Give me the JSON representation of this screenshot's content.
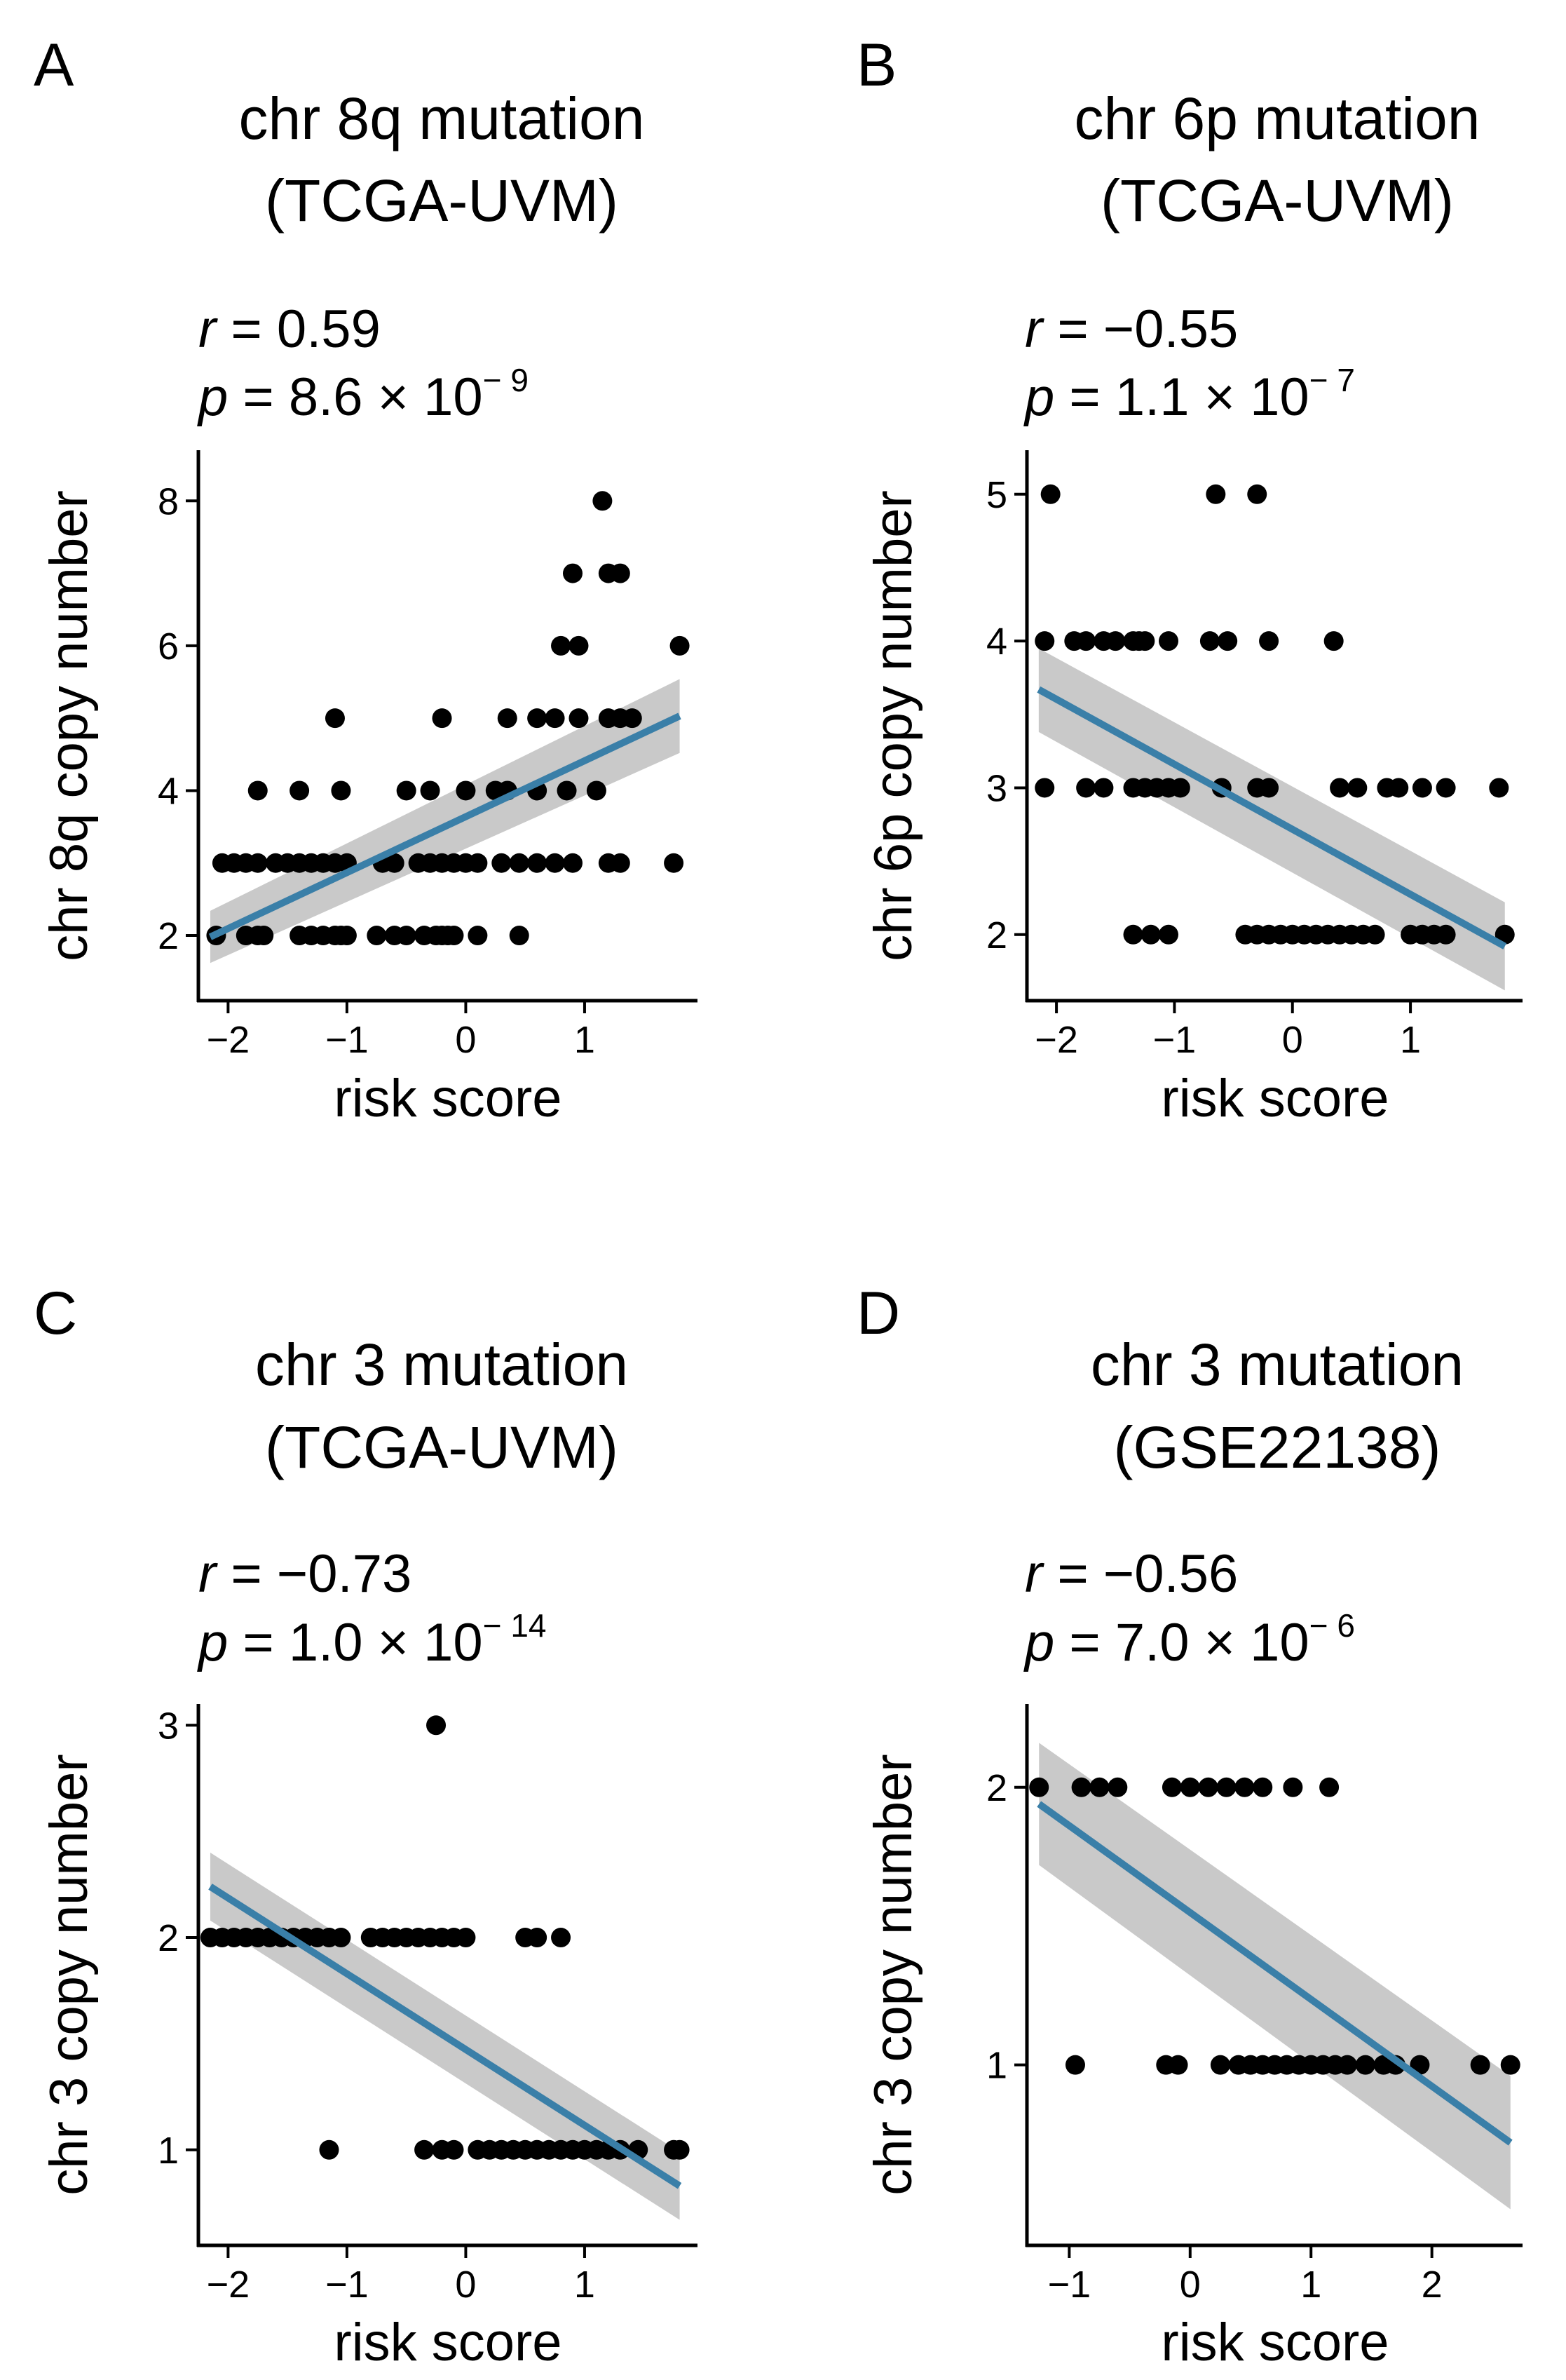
{
  "colors": {
    "point": "#000000",
    "line": "#3a7fa8",
    "band": "#bfbfbf",
    "axis": "#000000",
    "tick_text": "#4d4d4d"
  },
  "chart_data": [
    {
      "panel": "A",
      "type": "scatter",
      "title_line1": "chr 8q mutation",
      "title_line2": "(TCGA-UVM)",
      "r_label": "r",
      "r_text": " = 0.59",
      "p_label": "p",
      "p_mantissa": " = 8.6 × 10",
      "p_exponent": "− 9",
      "xlabel": "risk score",
      "ylabel": "chr 8q copy number",
      "xlim": [
        -2.25,
        1.95
      ],
      "ylim": [
        1.1,
        8.7
      ],
      "xticks": [
        -2,
        -1,
        0,
        1
      ],
      "xtick_labels": [
        "−2",
        "−1",
        "0",
        "1"
      ],
      "yticks": [
        2,
        4,
        6,
        8
      ],
      "ytick_labels": [
        "2",
        "4",
        "6",
        "8"
      ],
      "points": [
        [
          -2.1,
          2
        ],
        [
          -1.85,
          2
        ],
        [
          -1.75,
          2
        ],
        [
          -1.7,
          2
        ],
        [
          -1.4,
          2
        ],
        [
          -1.3,
          2
        ],
        [
          -1.2,
          2
        ],
        [
          -1.1,
          2
        ],
        [
          -1.05,
          2
        ],
        [
          -1.0,
          2
        ],
        [
          -0.75,
          2
        ],
        [
          -0.6,
          2
        ],
        [
          -0.5,
          2
        ],
        [
          -0.35,
          2
        ],
        [
          -0.25,
          2
        ],
        [
          -0.2,
          2
        ],
        [
          -0.15,
          2
        ],
        [
          -0.1,
          2
        ],
        [
          0.1,
          2
        ],
        [
          0.45,
          2
        ],
        [
          -2.05,
          3
        ],
        [
          -1.95,
          3
        ],
        [
          -1.85,
          3
        ],
        [
          -1.75,
          3
        ],
        [
          -1.6,
          3
        ],
        [
          -1.5,
          3
        ],
        [
          -1.4,
          3
        ],
        [
          -1.3,
          3
        ],
        [
          -1.2,
          3
        ],
        [
          -1.1,
          3
        ],
        [
          -1.0,
          3
        ],
        [
          -0.7,
          3
        ],
        [
          -0.6,
          3
        ],
        [
          -0.4,
          3
        ],
        [
          -0.3,
          3
        ],
        [
          -0.2,
          3
        ],
        [
          -0.1,
          3
        ],
        [
          0.0,
          3
        ],
        [
          0.1,
          3
        ],
        [
          0.3,
          3
        ],
        [
          0.45,
          3
        ],
        [
          0.6,
          3
        ],
        [
          0.75,
          3
        ],
        [
          0.9,
          3
        ],
        [
          1.2,
          3
        ],
        [
          1.3,
          3
        ],
        [
          1.75,
          3
        ],
        [
          -1.75,
          4
        ],
        [
          -1.4,
          4
        ],
        [
          -1.05,
          4
        ],
        [
          -0.5,
          4
        ],
        [
          -0.3,
          4
        ],
        [
          0.0,
          4
        ],
        [
          0.25,
          4
        ],
        [
          0.35,
          4
        ],
        [
          0.6,
          4
        ],
        [
          0.85,
          4
        ],
        [
          1.1,
          4
        ],
        [
          -1.1,
          5
        ],
        [
          -0.2,
          5
        ],
        [
          0.35,
          5
        ],
        [
          0.6,
          5
        ],
        [
          0.75,
          5
        ],
        [
          0.95,
          5
        ],
        [
          1.2,
          5
        ],
        [
          1.3,
          5
        ],
        [
          1.4,
          5
        ],
        [
          0.8,
          6
        ],
        [
          0.95,
          6
        ],
        [
          1.8,
          6
        ],
        [
          0.9,
          7
        ],
        [
          1.2,
          7
        ],
        [
          1.3,
          7
        ],
        [
          1.15,
          8
        ]
      ],
      "fit_start": [
        -2.15,
        1.98
      ],
      "fit_end": [
        1.8,
        5.03
      ],
      "band_start": [
        -2.15,
        1.62,
        2.34
      ],
      "band_end": [
        1.8,
        4.52,
        5.54
      ]
    },
    {
      "panel": "B",
      "type": "scatter",
      "title_line1": "chr 6p mutation",
      "title_line2": "(TCGA-UVM)",
      "r_label": "r",
      "r_text": " = −0.55",
      "p_label": "p",
      "p_mantissa": " = 1.1 × 10",
      "p_exponent": "− 7",
      "xlabel": "risk score",
      "ylabel": "chr 6p copy number",
      "xlim": [
        -2.25,
        1.95
      ],
      "ylim": [
        1.55,
        5.3
      ],
      "xticks": [
        -2,
        -1,
        0,
        1
      ],
      "xtick_labels": [
        "−2",
        "−1",
        "0",
        "1"
      ],
      "yticks": [
        2,
        3,
        4,
        5
      ],
      "ytick_labels": [
        "2",
        "3",
        "4",
        "5"
      ],
      "points": [
        [
          -1.35,
          2
        ],
        [
          -1.2,
          2
        ],
        [
          -1.05,
          2
        ],
        [
          -0.4,
          2
        ],
        [
          -0.3,
          2
        ],
        [
          -0.2,
          2
        ],
        [
          -0.1,
          2
        ],
        [
          0.0,
          2
        ],
        [
          0.1,
          2
        ],
        [
          0.2,
          2
        ],
        [
          0.3,
          2
        ],
        [
          0.4,
          2
        ],
        [
          0.5,
          2
        ],
        [
          0.6,
          2
        ],
        [
          0.7,
          2
        ],
        [
          1.0,
          2
        ],
        [
          1.1,
          2
        ],
        [
          1.2,
          2
        ],
        [
          1.3,
          2
        ],
        [
          1.8,
          2
        ],
        [
          -2.1,
          3
        ],
        [
          -1.75,
          3
        ],
        [
          -1.6,
          3
        ],
        [
          -1.35,
          3
        ],
        [
          -1.25,
          3
        ],
        [
          -1.15,
          3
        ],
        [
          -1.05,
          3
        ],
        [
          -0.95,
          3
        ],
        [
          -0.6,
          3
        ],
        [
          -0.3,
          3
        ],
        [
          -0.2,
          3
        ],
        [
          0.4,
          3
        ],
        [
          0.55,
          3
        ],
        [
          0.8,
          3
        ],
        [
          0.9,
          3
        ],
        [
          1.1,
          3
        ],
        [
          1.3,
          3
        ],
        [
          1.75,
          3
        ],
        [
          -2.1,
          4
        ],
        [
          -1.85,
          4
        ],
        [
          -1.75,
          4
        ],
        [
          -1.6,
          4
        ],
        [
          -1.5,
          4
        ],
        [
          -1.35,
          4
        ],
        [
          -1.3,
          4
        ],
        [
          -1.25,
          4
        ],
        [
          -1.05,
          4
        ],
        [
          -0.7,
          4
        ],
        [
          -0.55,
          4
        ],
        [
          -0.2,
          4
        ],
        [
          0.35,
          4
        ],
        [
          -2.05,
          5
        ],
        [
          -0.65,
          5
        ],
        [
          -0.3,
          5
        ]
      ],
      "fit_start": [
        -2.15,
        3.67
      ],
      "fit_end": [
        1.8,
        1.92
      ],
      "band_start": [
        -2.15,
        3.38,
        3.95
      ],
      "band_end": [
        1.8,
        1.62,
        2.22
      ]
    },
    {
      "panel": "C",
      "type": "scatter",
      "title_line1": "chr 3 mutation",
      "title_line2": "(TCGA-UVM)",
      "r_label": "r",
      "r_text": " = −0.73",
      "p_label": "p",
      "p_mantissa": " = 1.0 × 10",
      "p_exponent": "− 14",
      "xlabel": "risk score",
      "ylabel": "chr 3 copy number",
      "xlim": [
        -2.25,
        1.95
      ],
      "ylim": [
        0.55,
        3.1
      ],
      "xticks": [
        -2,
        -1,
        0,
        1
      ],
      "xtick_labels": [
        "−2",
        "−1",
        "0",
        "1"
      ],
      "yticks": [
        1,
        2,
        3
      ],
      "ytick_labels": [
        "1",
        "2",
        "3"
      ],
      "points": [
        [
          -2.15,
          2
        ],
        [
          -2.05,
          2
        ],
        [
          -1.95,
          2
        ],
        [
          -1.85,
          2
        ],
        [
          -1.75,
          2
        ],
        [
          -1.65,
          2
        ],
        [
          -1.55,
          2
        ],
        [
          -1.45,
          2
        ],
        [
          -1.35,
          2
        ],
        [
          -1.25,
          2
        ],
        [
          -1.15,
          2
        ],
        [
          -1.05,
          2
        ],
        [
          -0.8,
          2
        ],
        [
          -0.7,
          2
        ],
        [
          -0.6,
          2
        ],
        [
          -0.5,
          2
        ],
        [
          -0.4,
          2
        ],
        [
          -0.3,
          2
        ],
        [
          -0.2,
          2
        ],
        [
          -0.1,
          2
        ],
        [
          0.0,
          2
        ],
        [
          0.5,
          2
        ],
        [
          0.6,
          2
        ],
        [
          0.8,
          2
        ],
        [
          -1.15,
          1
        ],
        [
          -0.35,
          1
        ],
        [
          -0.2,
          1
        ],
        [
          -0.1,
          1
        ],
        [
          0.1,
          1
        ],
        [
          0.2,
          1
        ],
        [
          0.3,
          1
        ],
        [
          0.4,
          1
        ],
        [
          0.5,
          1
        ],
        [
          0.6,
          1
        ],
        [
          0.7,
          1
        ],
        [
          0.8,
          1
        ],
        [
          0.9,
          1
        ],
        [
          1.0,
          1
        ],
        [
          1.1,
          1
        ],
        [
          1.2,
          1
        ],
        [
          1.3,
          1
        ],
        [
          1.45,
          1
        ],
        [
          1.75,
          1
        ],
        [
          1.8,
          1
        ],
        [
          -0.25,
          3
        ]
      ],
      "fit_start": [
        -2.15,
        2.24
      ],
      "fit_end": [
        1.8,
        0.83
      ],
      "band_start": [
        -2.15,
        2.08,
        2.4
      ],
      "band_end": [
        1.8,
        0.67,
        0.99
      ]
    },
    {
      "panel": "D",
      "type": "scatter",
      "title_line1": "chr 3 mutation",
      "title_line2": "(GSE22138)",
      "r_label": "r",
      "r_text": " = −0.56",
      "p_label": "p",
      "p_mantissa": " = 7.0 × 10",
      "p_exponent": "− 6",
      "xlabel": "risk score",
      "ylabel": "chr 3 copy number",
      "xlim": [
        -1.35,
        2.75
      ],
      "ylim": [
        0.35,
        2.3
      ],
      "xticks": [
        -1,
        0,
        1,
        2
      ],
      "xtick_labels": [
        "−1",
        "0",
        "1",
        "2"
      ],
      "yticks": [
        1,
        2
      ],
      "ytick_labels": [
        "1",
        "2"
      ],
      "points": [
        [
          -1.25,
          2
        ],
        [
          -0.9,
          2
        ],
        [
          -0.75,
          2
        ],
        [
          -0.6,
          2
        ],
        [
          -0.15,
          2
        ],
        [
          0.0,
          2
        ],
        [
          0.15,
          2
        ],
        [
          0.3,
          2
        ],
        [
          0.45,
          2
        ],
        [
          0.6,
          2
        ],
        [
          0.85,
          2
        ],
        [
          1.15,
          2
        ],
        [
          -0.95,
          1
        ],
        [
          -0.2,
          1
        ],
        [
          -0.1,
          1
        ],
        [
          0.25,
          1
        ],
        [
          0.4,
          1
        ],
        [
          0.5,
          1
        ],
        [
          0.6,
          1
        ],
        [
          0.7,
          1
        ],
        [
          0.8,
          1
        ],
        [
          0.9,
          1
        ],
        [
          1.0,
          1
        ],
        [
          1.1,
          1
        ],
        [
          1.2,
          1
        ],
        [
          1.3,
          1
        ],
        [
          1.45,
          1
        ],
        [
          1.6,
          1
        ],
        [
          1.7,
          1
        ],
        [
          1.9,
          1
        ],
        [
          2.4,
          1
        ],
        [
          2.65,
          1
        ]
      ],
      "fit_start": [
        -1.25,
        1.94
      ],
      "fit_end": [
        2.65,
        0.72
      ],
      "band_start": [
        -1.25,
        1.72,
        2.16
      ],
      "band_end": [
        2.65,
        0.48,
        0.96
      ]
    }
  ]
}
